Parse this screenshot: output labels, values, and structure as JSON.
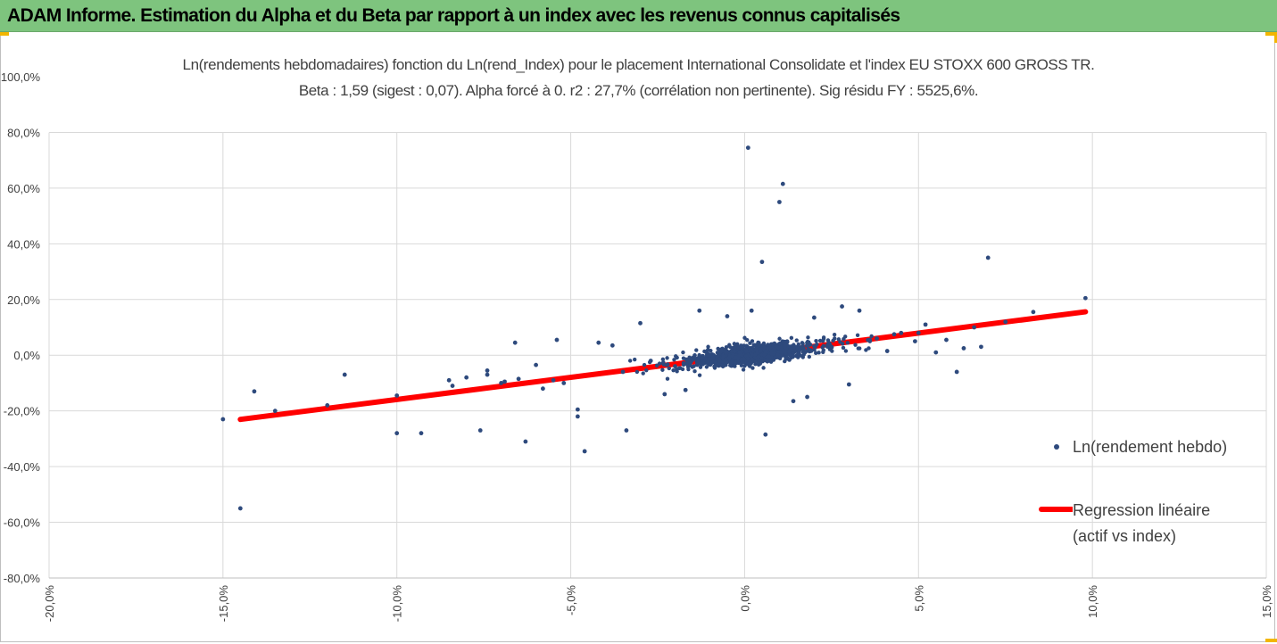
{
  "banner": {
    "title": "ADAM Informe. Estimation du Alpha et du Beta par rapport à un index avec les revenus connus capitalisés"
  },
  "colors": {
    "banner_bg": "#7ec47e",
    "corner_accent": "#f2b600",
    "points": "#2e4a7d",
    "regression": "#ff0000",
    "grid": "#d9d9d9",
    "text": "#404040"
  },
  "chart_data": {
    "type": "scatter",
    "title": "Ln(rendements hebdomadaires) fonction du Ln(rend_Index) pour le placement International Consolidate et l'index EU STOXX 600 GROSS TR.",
    "subtitle": "Beta : 1,59 (sigest : 0,07). Alpha forcé à 0. r2 : 27,7% (corrélation non pertinente). Sig résidu FY : 5525,6%.",
    "xlim": [
      -20,
      15
    ],
    "ylim": [
      -80,
      100
    ],
    "x_ticks": [
      -20,
      -15,
      -10,
      -5,
      0,
      5,
      10,
      15
    ],
    "x_tick_labels": [
      "-20,0%",
      "-15,0%",
      "-10,0%",
      "-5,0%",
      "0,0%",
      "5,0%",
      "10,0%",
      "15,0%"
    ],
    "y_ticks": [
      -80,
      -60,
      -40,
      -20,
      0,
      20,
      40,
      60,
      80,
      100
    ],
    "y_tick_labels": [
      "-80,0%",
      "-60,0%",
      "-40,0%",
      "-20,0%",
      "0,0%",
      "20,0%",
      "40,0%",
      "60,0%",
      "80,0%",
      "100,0%"
    ],
    "grid": true,
    "legend_position": "right",
    "series": [
      {
        "name": "Ln(rendement hebdo)",
        "kind": "scatter",
        "points": [
          [
            0.1,
            74.5
          ],
          [
            1.1,
            61.5
          ],
          [
            1.0,
            55
          ],
          [
            0.5,
            33.5
          ],
          [
            7.0,
            35
          ],
          [
            9.8,
            20.5
          ],
          [
            -14.5,
            -55
          ],
          [
            -14.1,
            -13
          ],
          [
            -11.5,
            -7
          ],
          [
            -10.0,
            -14.5
          ],
          [
            -10.0,
            -28
          ],
          [
            -9.3,
            -28
          ],
          [
            -8.5,
            -9
          ],
          [
            -8.4,
            -11
          ],
          [
            -7.6,
            -27
          ],
          [
            -7.4,
            -5.5
          ],
          [
            -7.4,
            -7
          ],
          [
            -6.6,
            4.5
          ],
          [
            -6.3,
            -31
          ],
          [
            -5.4,
            5.5
          ],
          [
            -4.8,
            -22
          ],
          [
            -4.6,
            -34.5
          ],
          [
            -3.4,
            -27
          ],
          [
            -3.0,
            11.5
          ],
          [
            0.6,
            -28.5
          ],
          [
            1.4,
            -16.5
          ],
          [
            1.8,
            -15
          ],
          [
            3.0,
            -10.5
          ],
          [
            6.1,
            -6
          ],
          [
            6.3,
            2.5
          ],
          [
            7.5,
            12
          ],
          [
            8.3,
            15.5
          ],
          [
            5.2,
            11
          ],
          [
            5.8,
            5.5
          ],
          [
            4.5,
            8
          ],
          [
            2.8,
            17.5
          ],
          [
            3.3,
            16
          ],
          [
            -1.3,
            16
          ],
          [
            0.2,
            16
          ],
          [
            2.0,
            13.5
          ],
          [
            -0.5,
            14
          ],
          [
            -1.7,
            -12.5
          ],
          [
            -2.3,
            -14
          ],
          [
            -4.8,
            -19.5
          ],
          [
            -5.2,
            -10
          ],
          [
            -5.8,
            -12
          ],
          [
            -6.5,
            -8.5
          ],
          [
            -6.0,
            -3.5
          ],
          [
            -4.2,
            4.5
          ],
          [
            -3.8,
            3.5
          ],
          [
            4.9,
            5
          ],
          [
            5.5,
            1
          ],
          [
            4.1,
            1.5
          ],
          [
            3.6,
            5.5
          ],
          [
            6.8,
            3
          ],
          [
            -8.0,
            -8
          ],
          [
            -7.0,
            -10
          ],
          [
            -5.5,
            -9
          ],
          [
            -6.9,
            -9.5
          ],
          [
            -12.0,
            -18
          ],
          [
            -13.5,
            -20
          ],
          [
            -15.0,
            -23
          ],
          [
            -3.5,
            -6
          ],
          [
            -2.7,
            -2
          ],
          [
            -2.0,
            -4
          ],
          [
            -1.5,
            -1
          ],
          [
            1.5,
            2
          ],
          [
            2.5,
            3
          ],
          [
            3.8,
            6
          ],
          [
            4.3,
            7.5
          ],
          [
            5.0,
            8
          ],
          [
            6.6,
            10
          ]
        ]
      },
      {
        "name": "Regression linéaire",
        "name_line2": "(actif vs index)",
        "kind": "line",
        "slope": 1.59,
        "x_range": [
          -14.5,
          9.8
        ]
      }
    ]
  }
}
